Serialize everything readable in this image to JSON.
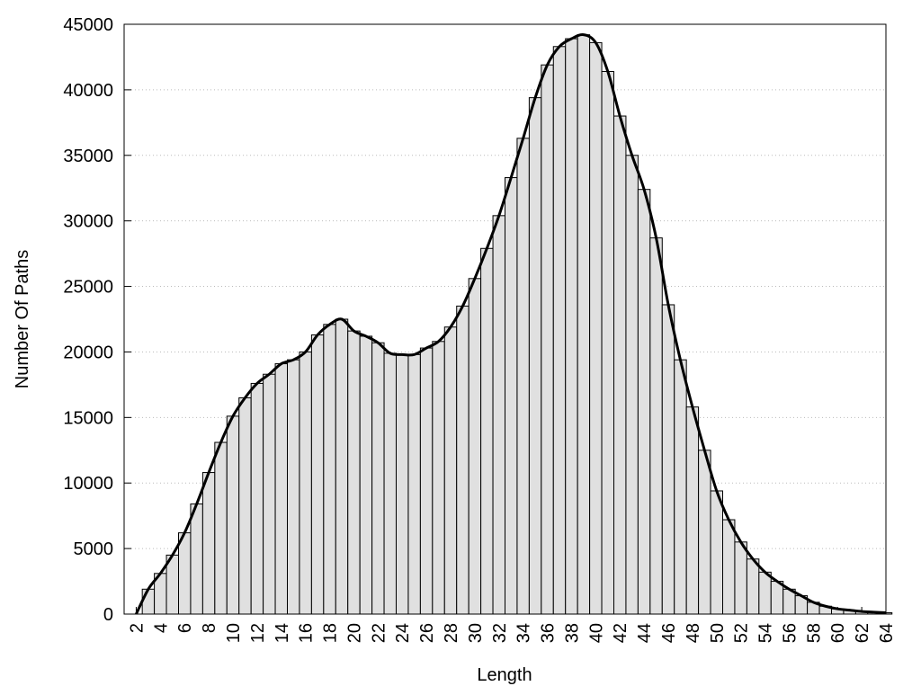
{
  "chart_data": {
    "type": "bar",
    "x_label": "Length",
    "y_label": "Number Of Paths",
    "x": [
      2,
      3,
      4,
      5,
      6,
      7,
      8,
      9,
      10,
      11,
      12,
      13,
      14,
      15,
      16,
      17,
      18,
      19,
      20,
      21,
      22,
      23,
      24,
      25,
      26,
      27,
      28,
      29,
      30,
      31,
      32,
      33,
      34,
      35,
      36,
      37,
      38,
      39,
      40,
      41,
      42,
      43,
      44,
      45,
      46,
      47,
      48,
      49,
      50,
      51,
      52,
      53,
      54,
      55,
      56,
      57,
      58,
      59,
      60,
      61,
      62,
      63,
      64
    ],
    "values": [
      0,
      1900,
      3100,
      4500,
      6200,
      8400,
      10800,
      13100,
      15100,
      16500,
      17600,
      18300,
      19100,
      19400,
      20000,
      21300,
      22100,
      22500,
      21600,
      21200,
      20700,
      19900,
      19800,
      19800,
      20300,
      20800,
      21900,
      23500,
      25600,
      27900,
      30400,
      33300,
      36300,
      39400,
      41900,
      43300,
      43900,
      44200,
      43600,
      41400,
      38000,
      35000,
      32400,
      28700,
      23600,
      19400,
      15800,
      12500,
      9400,
      7200,
      5500,
      4200,
      3200,
      2500,
      1900,
      1400,
      900,
      600,
      400,
      300,
      200,
      150,
      100
    ],
    "color": "#e0e0e0",
    "smooth_line": true,
    "line_color": "#000000",
    "xlim": [
      1,
      64
    ],
    "xticks": [
      2,
      4,
      6,
      8,
      10,
      12,
      14,
      16,
      18,
      20,
      22,
      24,
      26,
      28,
      30,
      32,
      34,
      36,
      38,
      40,
      42,
      44,
      46,
      48,
      50,
      52,
      54,
      56,
      58,
      60,
      62,
      64
    ],
    "ylim": [
      0,
      45000
    ],
    "yticks": [
      0,
      5000,
      10000,
      15000,
      20000,
      25000,
      30000,
      35000,
      40000,
      45000
    ],
    "grid": true
  }
}
